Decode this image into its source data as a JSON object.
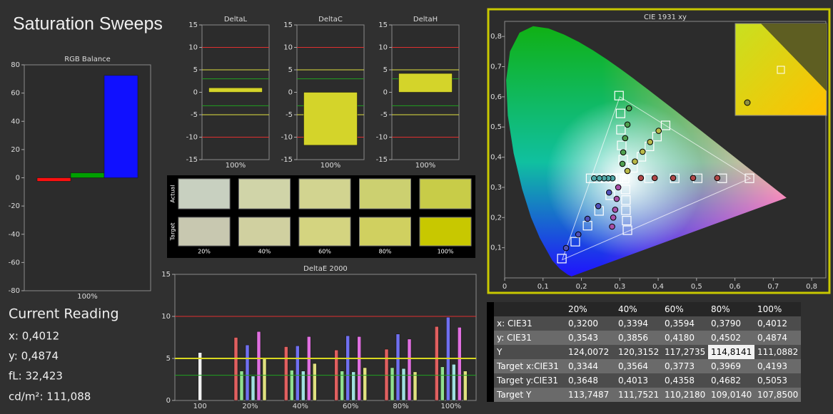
{
  "title": "Saturation Sweeps",
  "chart_data": [
    {
      "type": "bar",
      "title": "RGB Balance",
      "categories": [
        "100%"
      ],
      "series": [
        {
          "color": "#ff1010",
          "values": [
            -2.5
          ]
        },
        {
          "color": "#00a000",
          "values": [
            3.5
          ]
        },
        {
          "color": "#1010ff",
          "values": [
            72.5
          ]
        }
      ],
      "ylim": [
        -80,
        80
      ],
      "yticks": [
        -80,
        -60,
        -40,
        -20,
        0,
        20,
        40,
        60,
        80
      ]
    },
    {
      "type": "bar",
      "title": "DeltaL",
      "categories": [
        "100%"
      ],
      "values": [
        1
      ],
      "color": "#d4d42a",
      "ylim": [
        -15,
        15
      ],
      "yticks": [
        -15,
        -10,
        -5,
        0,
        5,
        10,
        15
      ],
      "reference_lines": [
        {
          "value": 10,
          "color": "#e03030"
        },
        {
          "value": 5,
          "color": "#e0e040"
        },
        {
          "value": 3,
          "color": "#20a020"
        },
        {
          "value": -3,
          "color": "#20a020"
        },
        {
          "value": -5,
          "color": "#e0e040"
        },
        {
          "value": -10,
          "color": "#e03030"
        }
      ]
    },
    {
      "type": "bar",
      "title": "DeltaC",
      "categories": [
        "100%"
      ],
      "values": [
        -11.8
      ],
      "color": "#d4d42a",
      "ylim": [
        -15,
        15
      ],
      "yticks": [
        -15,
        -10,
        -5,
        0,
        5,
        10,
        15
      ],
      "reference_lines": [
        {
          "value": 10,
          "color": "#e03030"
        },
        {
          "value": 5,
          "color": "#e0e040"
        },
        {
          "value": 3,
          "color": "#20a020"
        },
        {
          "value": -3,
          "color": "#20a020"
        },
        {
          "value": -5,
          "color": "#e0e040"
        },
        {
          "value": -10,
          "color": "#e03030"
        }
      ]
    },
    {
      "type": "bar",
      "title": "DeltaH",
      "categories": [
        "100%"
      ],
      "values": [
        4.2
      ],
      "color": "#d4d42a",
      "ylim": [
        -15,
        15
      ],
      "yticks": [
        -15,
        -10,
        -5,
        0,
        5,
        10,
        15
      ],
      "reference_lines": [
        {
          "value": 10,
          "color": "#e03030"
        },
        {
          "value": 5,
          "color": "#e0e040"
        },
        {
          "value": 3,
          "color": "#20a020"
        },
        {
          "value": -3,
          "color": "#20a020"
        },
        {
          "value": -5,
          "color": "#e0e040"
        },
        {
          "value": -10,
          "color": "#e03030"
        }
      ]
    },
    {
      "type": "bar",
      "title": "DeltaE 2000",
      "categories": [
        "100",
        "20%",
        "40%",
        "60%",
        "80%",
        "100%"
      ],
      "series": [
        {
          "color": "#f0f0f0",
          "values": [
            5.7,
            null,
            null,
            null,
            null,
            null
          ]
        },
        {
          "color": "#e06060",
          "values": [
            null,
            7.5,
            6.4,
            6.0,
            6.1,
            8.8
          ]
        },
        {
          "color": "#90e090",
          "values": [
            null,
            3.5,
            3.6,
            3.5,
            3.9,
            4.0
          ]
        },
        {
          "color": "#7070f0",
          "values": [
            null,
            6.6,
            6.5,
            7.7,
            7.9,
            9.9
          ]
        },
        {
          "color": "#a0e0e0",
          "values": [
            null,
            2.9,
            3.5,
            3.4,
            3.8,
            4.3
          ]
        },
        {
          "color": "#e070e0",
          "values": [
            null,
            8.2,
            7.6,
            7.6,
            7.3,
            8.7
          ]
        },
        {
          "color": "#e0e080",
          "values": [
            null,
            5.0,
            4.4,
            3.9,
            3.4,
            3.5
          ]
        }
      ],
      "ylim": [
        0,
        15
      ],
      "yticks": [
        0,
        5,
        10,
        15
      ],
      "reference_lines": [
        {
          "value": 10,
          "color": "#e03030"
        },
        {
          "value": 5,
          "color": "#d8d820"
        },
        {
          "value": 3,
          "color": "#20a020"
        }
      ]
    },
    {
      "type": "scatter",
      "title": "CIE 1931 xy",
      "xlim": [
        0,
        0.837
      ],
      "ylim": [
        0,
        0.85
      ],
      "xticks": [
        0,
        {
          "value": 0.1,
          "label": "0,1"
        },
        {
          "value": 0.2,
          "label": "0,2"
        },
        {
          "value": 0.3,
          "label": "0,3"
        },
        {
          "value": 0.4,
          "label": "0,4"
        },
        {
          "value": 0.5,
          "label": "0,5"
        },
        {
          "value": 0.6,
          "label": "0,6"
        },
        {
          "value": 0.7,
          "label": "0,7"
        },
        {
          "value": 0.8,
          "label": "0,8"
        }
      ],
      "yticks": [
        {
          "value": 0.1,
          "label": "0,1"
        },
        {
          "value": 0.2,
          "label": "0,2"
        },
        {
          "value": 0.3,
          "label": "0,3"
        },
        {
          "value": 0.4,
          "label": "0,4"
        },
        {
          "value": 0.5,
          "label": "0,5"
        },
        {
          "value": 0.6,
          "label": "0,6"
        },
        {
          "value": 0.7,
          "label": "0,7"
        },
        {
          "value": 0.8,
          "label": "0,8"
        }
      ],
      "gamut_x": [
        0.64,
        0.3,
        0.15
      ],
      "gamut_y": [
        0.33,
        0.6,
        0.06
      ],
      "series": [
        {
          "marker": "square",
          "color": "#ffffff",
          "x": [
            0.376,
            0.443,
            0.503,
            0.567,
            0.638
          ],
          "values": [
            0.33,
            0.33,
            0.33,
            0.33,
            0.33
          ]
        },
        {
          "marker": "square",
          "color": "#ffffff",
          "x": [
            0.309,
            0.305,
            0.303,
            0.302,
            0.298
          ],
          "values": [
            0.392,
            0.439,
            0.491,
            0.545,
            0.604
          ]
        },
        {
          "marker": "square",
          "color": "#ffffff",
          "x": [
            0.275,
            0.246,
            0.216,
            0.184,
            0.149
          ],
          "values": [
            0.274,
            0.222,
            0.173,
            0.12,
            0.064
          ]
        },
        {
          "marker": "square",
          "color": "#ffffff",
          "x": [
            0.296,
            0.28,
            0.263,
            0.244,
            0.224
          ],
          "values": [
            0.33,
            0.33,
            0.33,
            0.33,
            0.33
          ]
        },
        {
          "marker": "square",
          "color": "#ffffff",
          "x": [
            0.315,
            0.316,
            0.316,
            0.318,
            0.32
          ],
          "values": [
            0.293,
            0.258,
            0.224,
            0.19,
            0.158
          ]
        },
        {
          "marker": "square",
          "color": "#ffffff",
          "x": [
            0.3344,
            0.3564,
            0.3773,
            0.3969,
            0.4193
          ],
          "values": [
            0.3648,
            0.4013,
            0.4358,
            0.4682,
            0.5053
          ]
        },
        {
          "marker": "square",
          "color": "#ffffff",
          "x": [
            0.3127
          ],
          "values": [
            0.329
          ]
        },
        {
          "marker": "circle",
          "color": "#b04848",
          "x": [
            0.355,
            0.391,
            0.439,
            0.491,
            0.554
          ],
          "values": [
            0.331,
            0.331,
            0.331,
            0.331,
            0.331
          ]
        },
        {
          "marker": "circle",
          "color": "#50a050",
          "x": [
            0.307,
            0.309,
            0.314,
            0.32,
            0.324
          ],
          "values": [
            0.378,
            0.416,
            0.463,
            0.508,
            0.562
          ]
        },
        {
          "marker": "circle",
          "color": "#5050b8",
          "x": [
            0.272,
            0.244,
            0.216,
            0.192,
            0.16
          ],
          "values": [
            0.283,
            0.238,
            0.196,
            0.144,
            0.099
          ]
        },
        {
          "marker": "circle",
          "color": "#50a8a8",
          "x": [
            0.281,
            0.27,
            0.259,
            0.247,
            0.233
          ],
          "values": [
            0.33,
            0.33,
            0.33,
            0.33,
            0.33
          ]
        },
        {
          "marker": "circle",
          "color": "#a850a8",
          "x": [
            0.296,
            0.292,
            0.288,
            0.283,
            0.28
          ],
          "values": [
            0.3,
            0.262,
            0.226,
            0.2,
            0.17
          ]
        },
        {
          "marker": "circle",
          "color": "#b8b848",
          "x": [
            0.32,
            0.3394,
            0.3594,
            0.379,
            0.4012
          ],
          "values": [
            0.3543,
            0.3856,
            0.418,
            0.4502,
            0.4874
          ]
        }
      ]
    }
  ],
  "swatches": {
    "row_labels": [
      "Actual",
      "Target"
    ],
    "labels": [
      "20%",
      "40%",
      "60%",
      "80%",
      "100%"
    ],
    "actual": [
      "#c8d0c0",
      "#d0d4a8",
      "#d2d490",
      "#ccd070",
      "#c8cc48"
    ],
    "target": [
      "#c8c8b0",
      "#d0d0a0",
      "#d4d480",
      "#d0d060",
      "#c8c800"
    ]
  },
  "current_reading": {
    "title": "Current Reading",
    "lines": [
      "x: 0,4012",
      "y: 0,4874",
      "fL: 32,423",
      "cd/m²: 111,088"
    ]
  },
  "table": {
    "header": [
      "20%",
      "40%",
      "60%",
      "80%",
      "100%"
    ],
    "rows": [
      [
        "x: CIE31",
        "0,3200",
        "0,3394",
        "0,3594",
        "0,3790",
        "0,4012"
      ],
      [
        "y: CIE31",
        "0,3543",
        "0,3856",
        "0,4180",
        "0,4502",
        "0,4874"
      ],
      [
        "Y",
        "124,0072",
        "120,3152",
        "117,2735",
        "114,8141",
        "111,0882"
      ],
      [
        "Target x:CIE31",
        "0,3344",
        "0,3564",
        "0,3773",
        "0,3969",
        "0,4193"
      ],
      [
        "Target y:CIE31",
        "0,3648",
        "0,4013",
        "0,4358",
        "0,4682",
        "0,5053"
      ],
      [
        "Target Y",
        "113,7487",
        "111,7521",
        "110,2180",
        "109,0140",
        "107,8500"
      ]
    ]
  }
}
